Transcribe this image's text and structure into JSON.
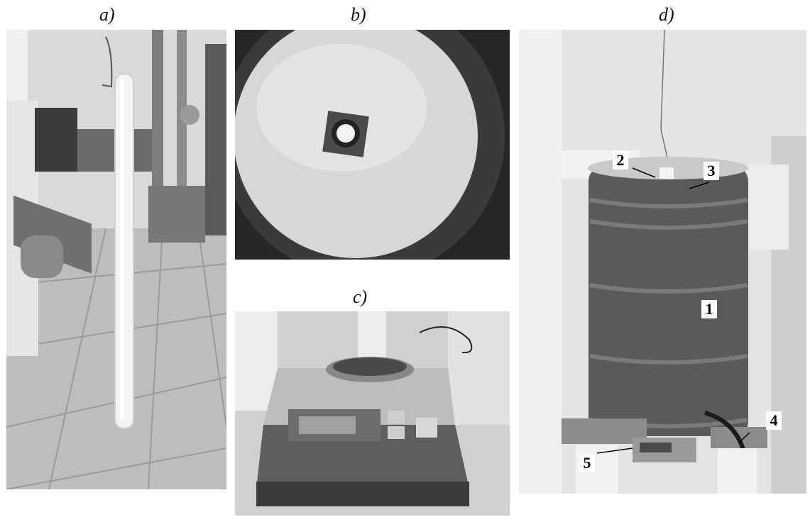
{
  "panels": {
    "a": {
      "label": "a)"
    },
    "b": {
      "label": "b)"
    },
    "c": {
      "label": "c)"
    },
    "d": {
      "label": "d)"
    }
  },
  "callouts": {
    "one": "1",
    "two": "2",
    "three": "3",
    "four": "4",
    "five": "5"
  }
}
